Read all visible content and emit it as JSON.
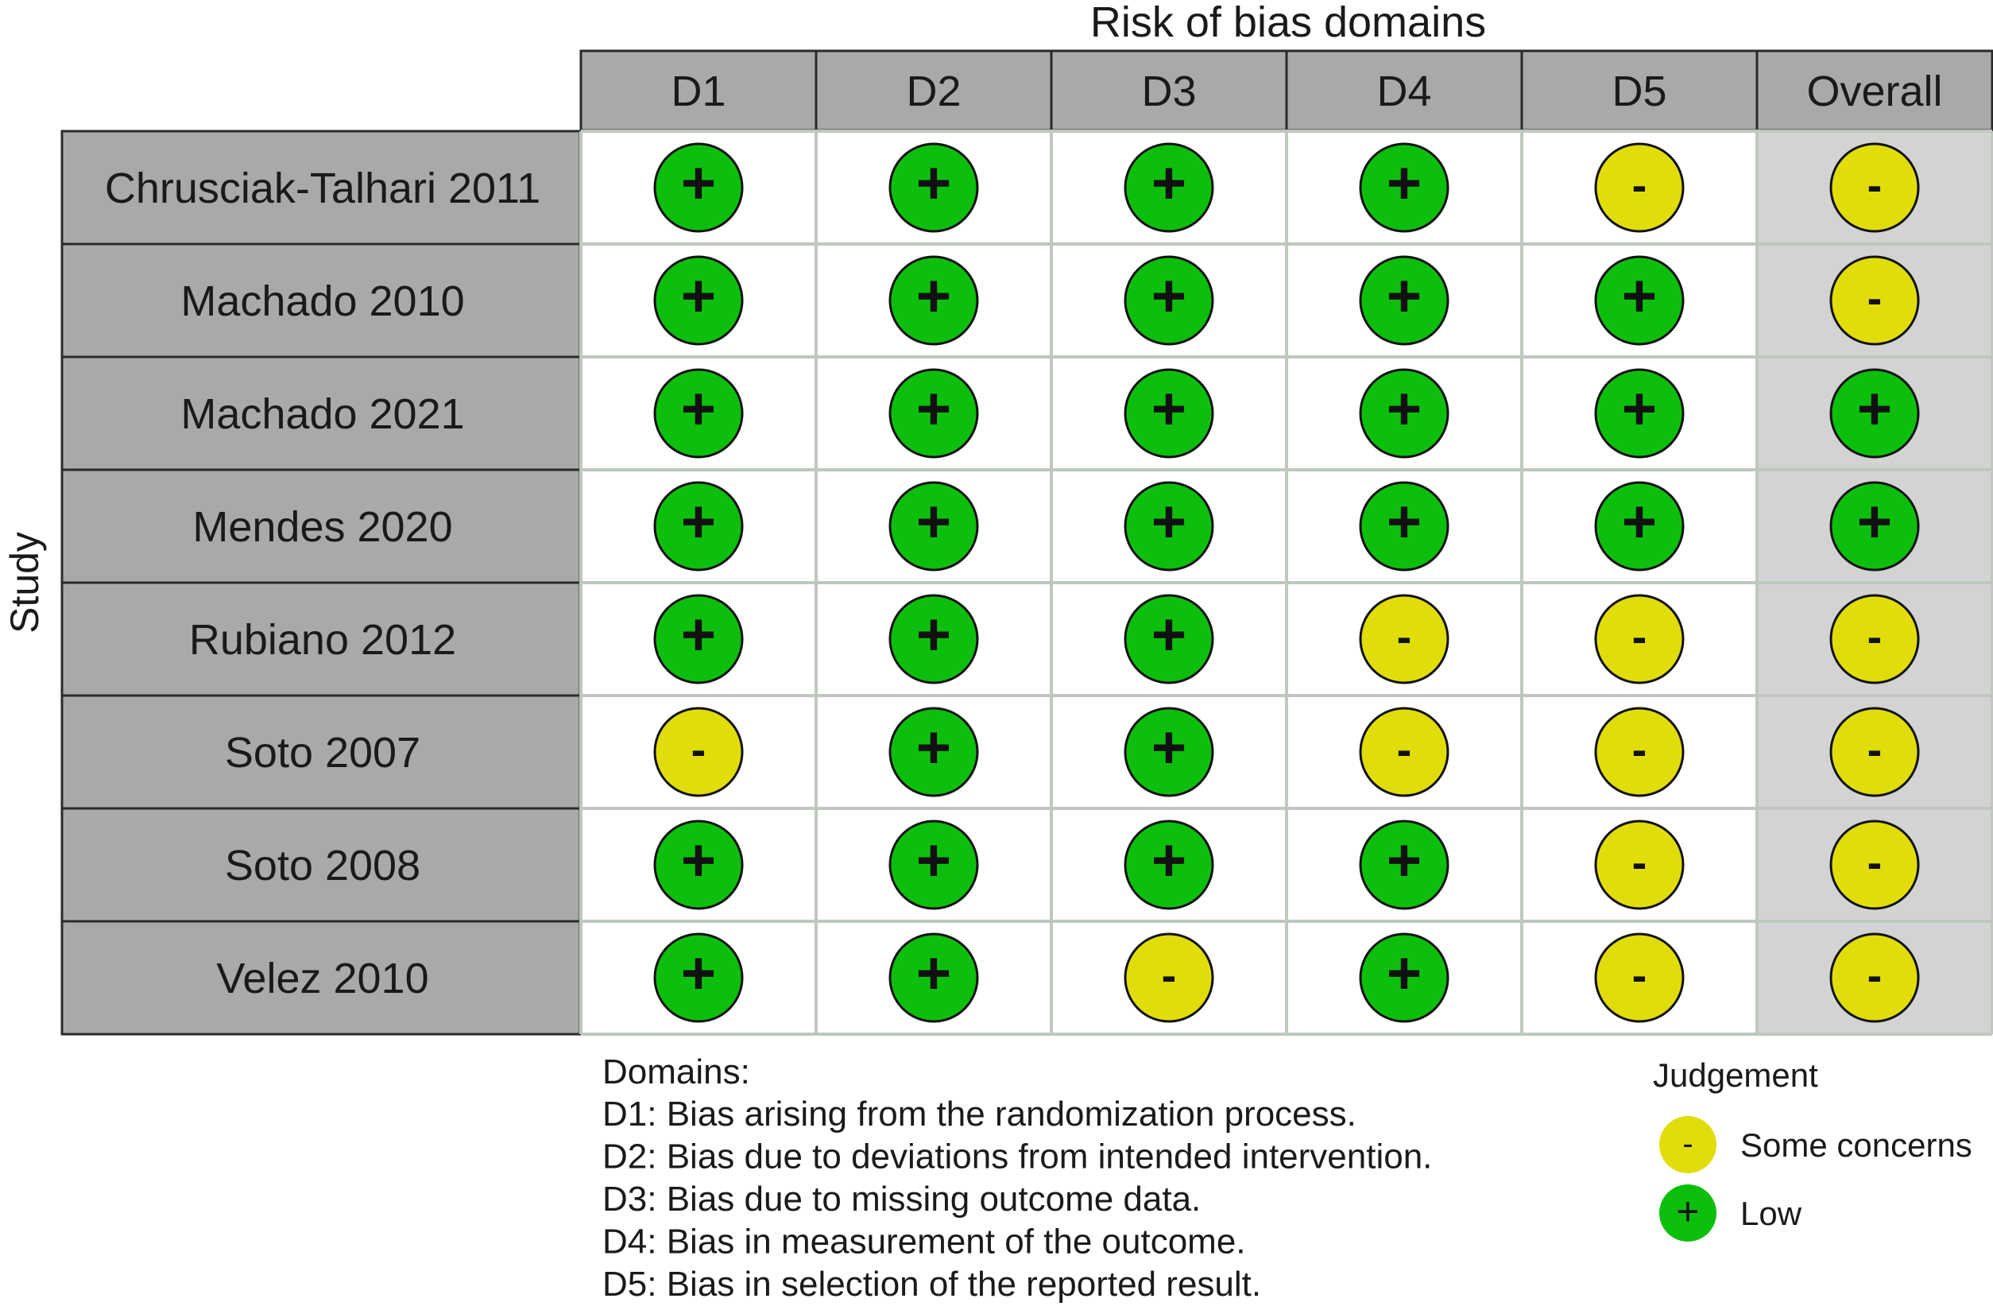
{
  "chart_data": {
    "type": "table",
    "title": "Risk of bias domains",
    "ylabel": "Study",
    "columns": [
      "D1",
      "D2",
      "D3",
      "D4",
      "D5",
      "Overall"
    ],
    "studies": [
      "Chrusciak-Talhari 2011",
      "Machado 2010",
      "Machado 2021",
      "Mendes 2020",
      "Rubiano 2012",
      "Soto 2007",
      "Soto 2008",
      "Velez 2010"
    ],
    "judgements": [
      [
        "+",
        "+",
        "+",
        "+",
        "-",
        "-"
      ],
      [
        "+",
        "+",
        "+",
        "+",
        "+",
        "-"
      ],
      [
        "+",
        "+",
        "+",
        "+",
        "+",
        "+"
      ],
      [
        "+",
        "+",
        "+",
        "+",
        "+",
        "+"
      ],
      [
        "+",
        "+",
        "+",
        "-",
        "-",
        "-"
      ],
      [
        "-",
        "+",
        "+",
        "-",
        "-",
        "-"
      ],
      [
        "+",
        "+",
        "+",
        "+",
        "-",
        "-"
      ],
      [
        "+",
        "+",
        "-",
        "+",
        "-",
        "-"
      ]
    ],
    "domains_heading": "Domains:",
    "domain_definitions": [
      "D1: Bias arising from the randomization process.",
      "D2: Bias due to deviations from intended intervention.",
      "D3: Bias due to missing outcome data.",
      "D4: Bias in measurement of the outcome.",
      "D5: Bias in selection of the reported result."
    ],
    "legend_title": "Judgement",
    "legend": [
      {
        "symbol": "-",
        "label": "Some concerns",
        "color": "#e1dd0a"
      },
      {
        "symbol": "+",
        "label": "Low",
        "color": "#0dbf0d"
      }
    ]
  },
  "colors": {
    "low": "#0dbf0d",
    "some_concerns": "#e1dd0a",
    "header_fill": "#a9a9a9",
    "overall_fill": "#d3d3d3",
    "grid_line": "#bfc7bf",
    "border": "#2a2a2a"
  }
}
